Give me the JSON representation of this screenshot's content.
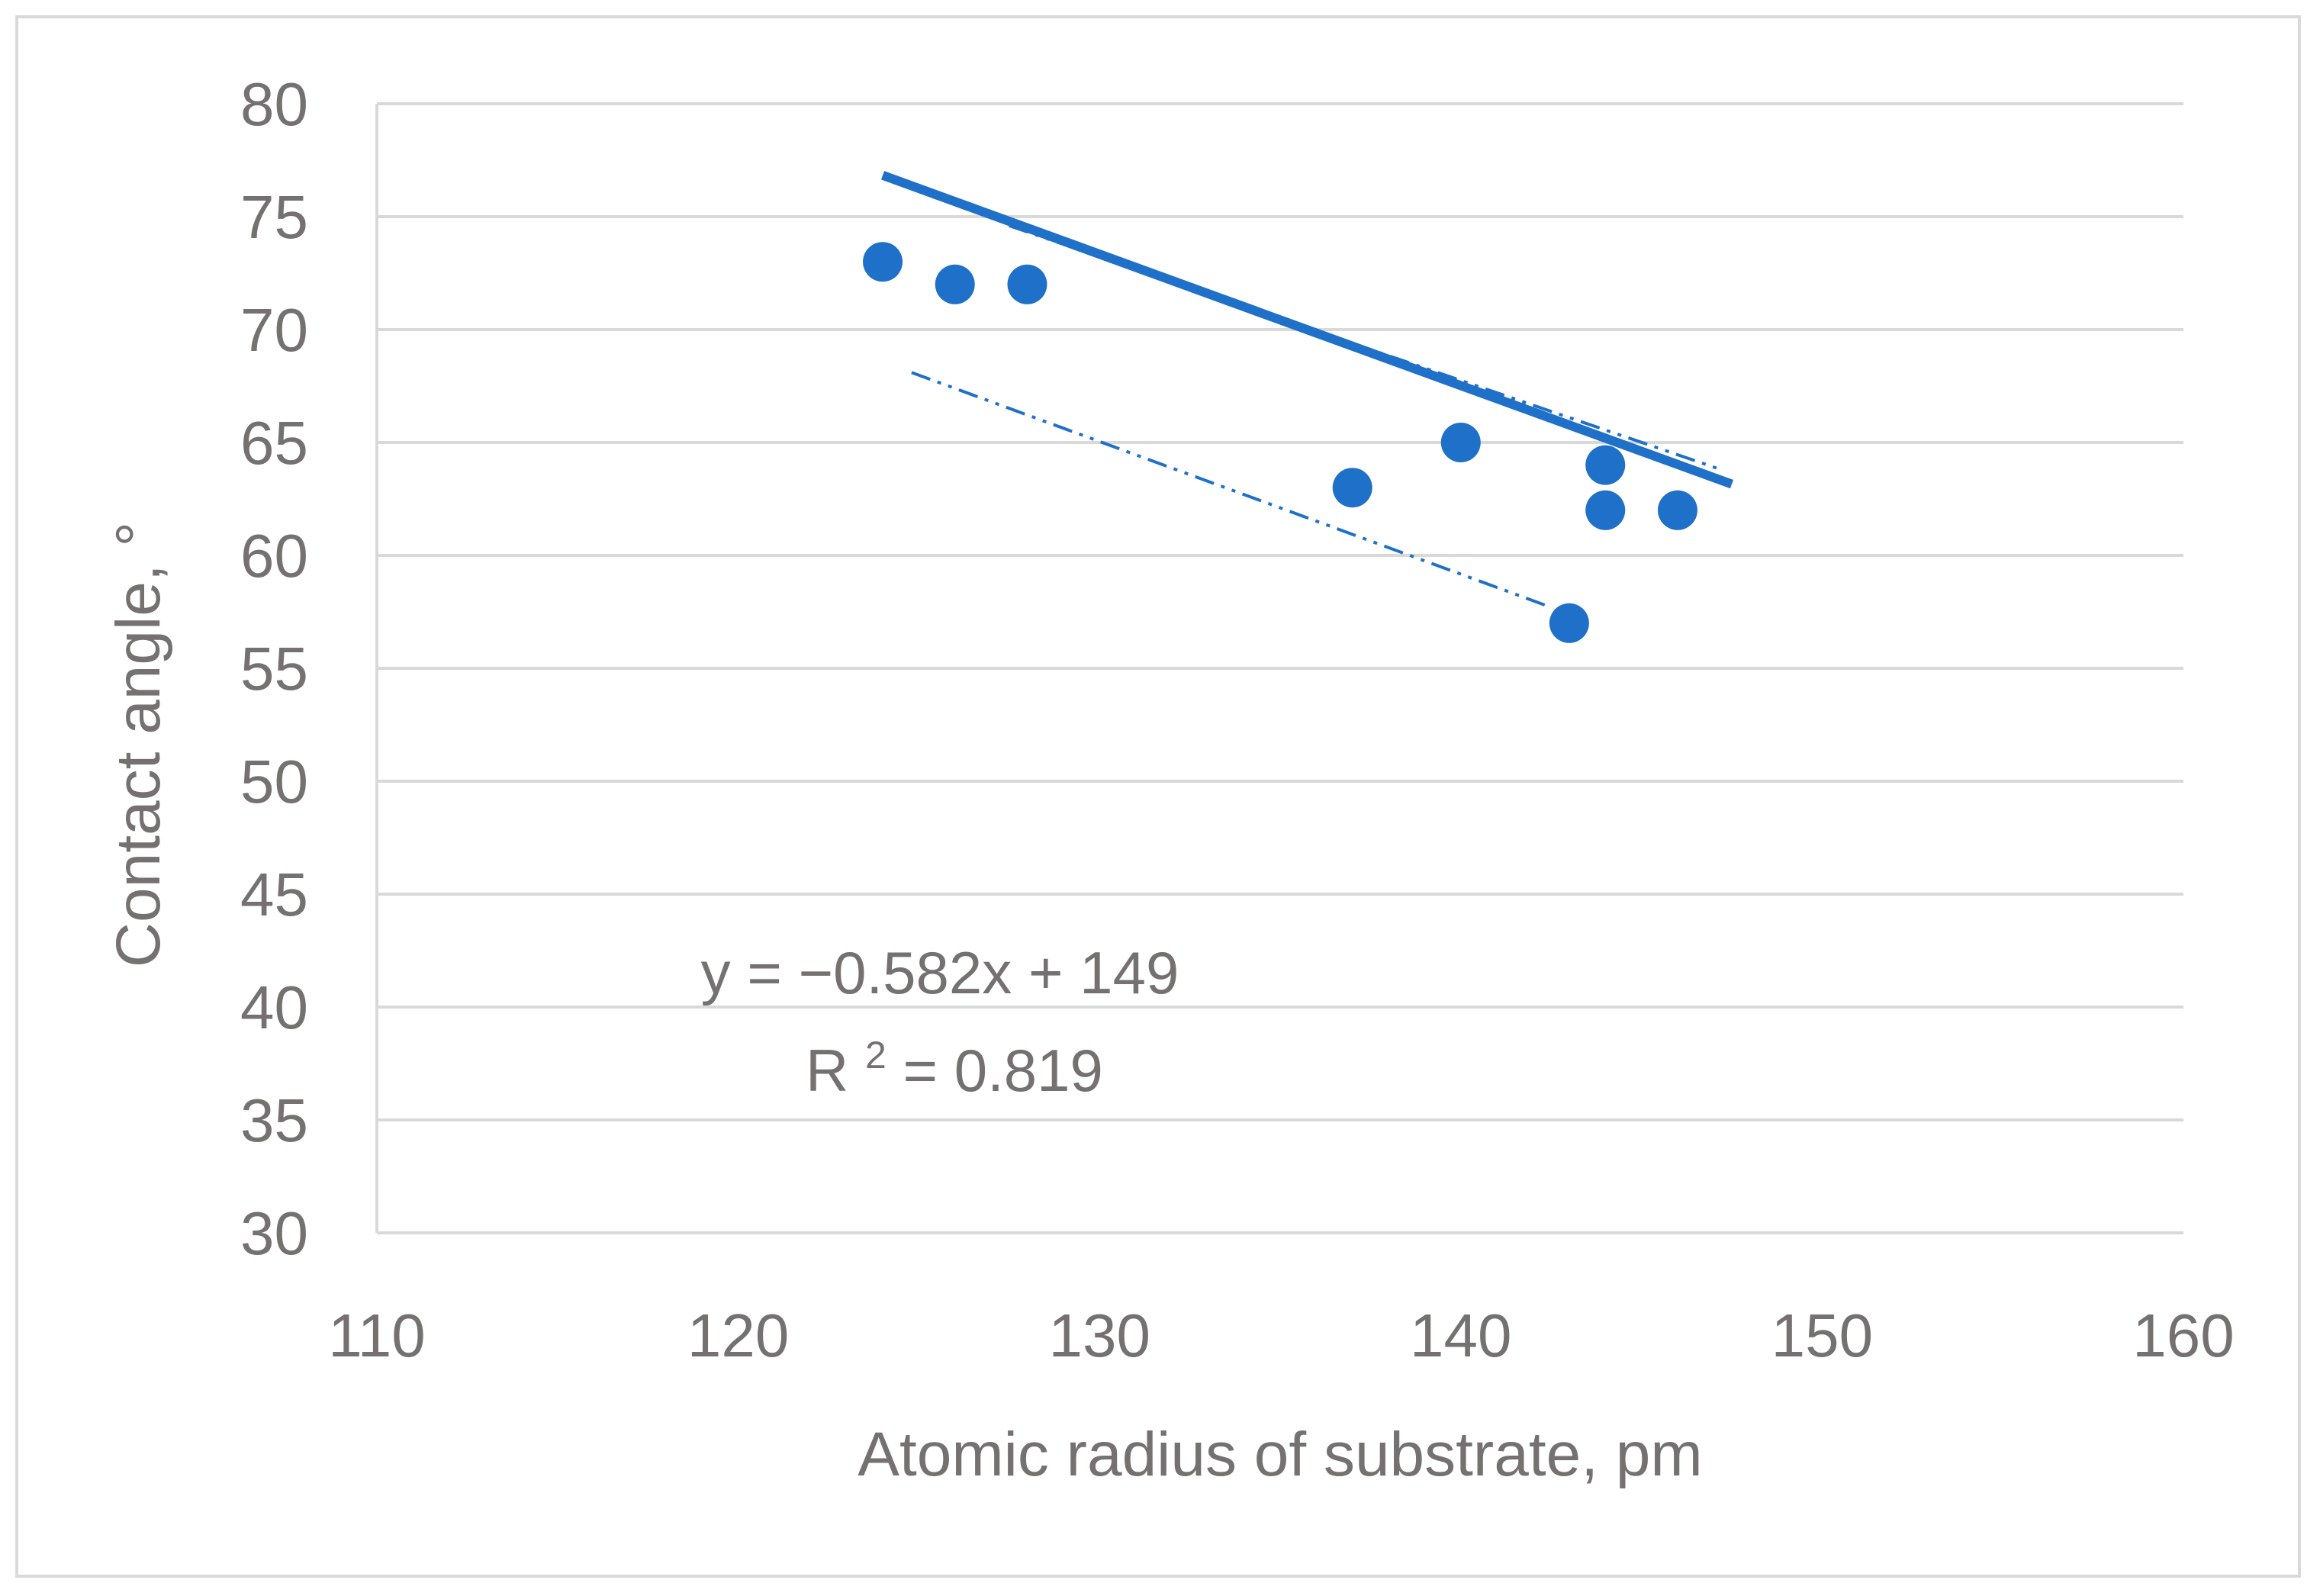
{
  "chart_data": {
    "type": "scatter",
    "title": "",
    "xlabel": "Atomic radius of substrate, pm",
    "ylabel": "Contact angle, °",
    "xlim": [
      110,
      160
    ],
    "ylim": [
      30,
      80
    ],
    "x_ticks": [
      "110",
      "120",
      "130",
      "140",
      "150",
      "160"
    ],
    "y_ticks": [
      "30",
      "35",
      "40",
      "45",
      "50",
      "55",
      "60",
      "65",
      "70",
      "75",
      "80"
    ],
    "grid": "horizontal",
    "legend": "none",
    "series": [
      {
        "points": [
          {
            "x": 124,
            "y": 73
          },
          {
            "x": 126,
            "y": 72
          },
          {
            "x": 128,
            "y": 72
          },
          {
            "x": 137,
            "y": 63
          },
          {
            "x": 140,
            "y": 65
          },
          {
            "x": 143,
            "y": 57
          },
          {
            "x": 144,
            "y": 64
          },
          {
            "x": 144,
            "y": 62
          },
          {
            "x": 146,
            "y": 62
          }
        ],
        "color": "#1f70c8"
      }
    ],
    "trendline": {
      "slope": -0.582,
      "intercept": 149,
      "x_range": [
        124,
        147.5
      ],
      "color": "#1f70c8"
    },
    "confidence_band": {
      "upper": {
        "x_range": [
          127.5,
          147.2
        ],
        "y_range": [
          74.6,
          63.8
        ]
      },
      "lower": {
        "x_range": [
          124.8,
          142.5
        ],
        "y_range": [
          68.1,
          57.7
        ]
      },
      "style": "dash-dot-dot"
    },
    "annotations": {
      "equation_prefix": "y = −0.582x + 149",
      "r2_label": "R",
      "r2_superscript": "2",
      "r2_value": "= 0.819"
    },
    "colors": {
      "marker": "#1f70c8",
      "gridline": "#d9d9d9",
      "text": "#767171",
      "border": "#d9d9d9"
    }
  }
}
